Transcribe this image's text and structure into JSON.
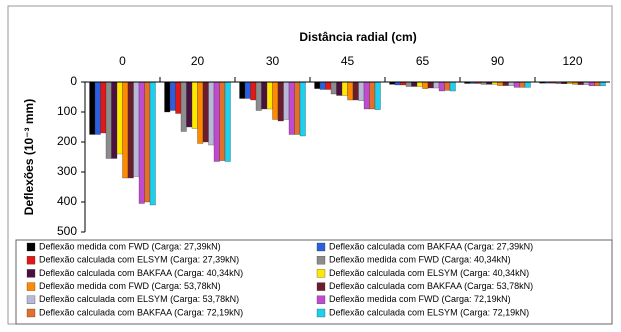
{
  "chart_data": {
    "type": "bar",
    "title": "Distância radial (cm)",
    "y_label": "Deflexões (10⁻³ mm)",
    "categories": [
      "0",
      "20",
      "30",
      "45",
      "65",
      "90",
      "120"
    ],
    "ylim": [
      0,
      500
    ],
    "yticks": [
      0,
      100,
      200,
      300,
      400,
      500
    ],
    "y_inverted": true,
    "x_axis_top": true,
    "grid": false,
    "legend": "bottom",
    "series": [
      {
        "name": "Deflexão medida com FWD (Carga: 27,39kN)",
        "color": "#000000",
        "values": [
          175,
          100,
          55,
          22,
          8,
          5,
          4
        ]
      },
      {
        "name": "Deflexão calculada com BAKFAA (Carga: 27,39kN)",
        "color": "#2b5fe0",
        "values": [
          175,
          95,
          55,
          25,
          10,
          5,
          4
        ]
      },
      {
        "name": "Deflexão calculada com ELSYM (Carga: 27,39kN)",
        "color": "#e01818",
        "values": [
          170,
          105,
          60,
          25,
          10,
          5,
          4
        ]
      },
      {
        "name": "Deflexão medida com FWD (Carga: 40,34kN)",
        "color": "#8c8c8c",
        "values": [
          255,
          165,
          95,
          40,
          15,
          8,
          6
        ]
      },
      {
        "name": "Deflexão calculada com BAKFAA (Carga: 40,34kN)",
        "color": "#4a1040",
        "values": [
          255,
          150,
          90,
          45,
          15,
          8,
          6
        ]
      },
      {
        "name": "Deflexão calculada com ELSYM (Carga: 40,34kN)",
        "color": "#ffe800",
        "values": [
          240,
          155,
          90,
          45,
          15,
          8,
          6
        ]
      },
      {
        "name": "Deflexão medida com FWD (Carga: 53,78kN)",
        "color": "#ff8a00",
        "values": [
          320,
          205,
          125,
          60,
          22,
          12,
          8
        ]
      },
      {
        "name": "Deflexão calculada com BAKFAA (Carga: 53,78kN)",
        "color": "#6b1d2e",
        "values": [
          320,
          200,
          130,
          60,
          20,
          12,
          9
        ]
      },
      {
        "name": "Deflexão calculada com ELSYM (Carga: 53,78kN)",
        "color": "#b8b8d8",
        "values": [
          315,
          210,
          125,
          62,
          20,
          12,
          9
        ]
      },
      {
        "name": "Deflexão medida com FWD (Carga: 72,19kN)",
        "color": "#c04ad0",
        "values": [
          405,
          265,
          175,
          90,
          30,
          18,
          13
        ]
      },
      {
        "name": "Deflexão calculada com BAKFAA (Carga: 72,19kN)",
        "color": "#e0702a",
        "values": [
          400,
          262,
          175,
          90,
          28,
          18,
          13
        ]
      },
      {
        "name": "Deflexão calculada com ELSYM (Carga: 72,19kN)",
        "color": "#1ed0f0",
        "values": [
          410,
          265,
          180,
          92,
          30,
          18,
          13
        ]
      }
    ]
  }
}
